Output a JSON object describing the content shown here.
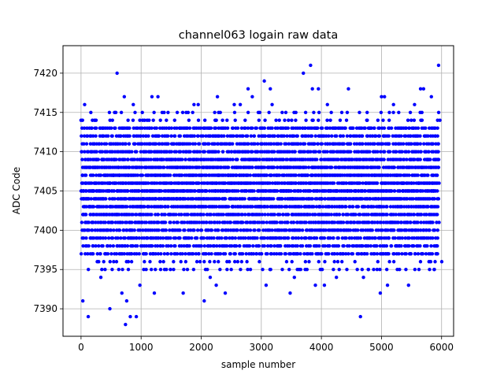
{
  "chart_data": {
    "type": "scatter",
    "title": "channel063 logain raw data",
    "xlabel": "sample number",
    "ylabel": "ADC Code",
    "xlim": [
      -300,
      6200
    ],
    "ylim": [
      7386.5,
      7423.5
    ],
    "x_ticks": [
      0,
      1000,
      2000,
      3000,
      4000,
      5000,
      6000
    ],
    "y_ticks": [
      7390,
      7395,
      7400,
      7405,
      7410,
      7415,
      7420
    ],
    "grid": true,
    "marker_color": "#0000ff",
    "sample_count": 6000,
    "series": [
      {
        "name": "",
        "dense_band": {
          "x_start": 0,
          "x_end": 5950,
          "y_min": 7397,
          "y_max": 7413
        },
        "outliers": [
          [
            0,
            7414
          ],
          [
            30,
            7391
          ],
          [
            60,
            7416
          ],
          [
            120,
            7389
          ],
          [
            180,
            7413
          ],
          [
            250,
            7414
          ],
          [
            330,
            7394
          ],
          [
            400,
            7395
          ],
          [
            480,
            7390
          ],
          [
            560,
            7413
          ],
          [
            600,
            7420
          ],
          [
            680,
            7392
          ],
          [
            720,
            7417
          ],
          [
            740,
            7388
          ],
          [
            760,
            7391
          ],
          [
            820,
            7389
          ],
          [
            870,
            7416
          ],
          [
            920,
            7389
          ],
          [
            980,
            7393
          ],
          [
            1020,
            7415
          ],
          [
            1100,
            7414
          ],
          [
            1180,
            7417
          ],
          [
            1220,
            7392
          ],
          [
            1280,
            7417
          ],
          [
            1350,
            7415
          ],
          [
            1420,
            7395
          ],
          [
            1700,
            7392
          ],
          [
            1750,
            7415
          ],
          [
            1880,
            7416
          ],
          [
            1950,
            7416
          ],
          [
            2050,
            7391
          ],
          [
            2150,
            7394
          ],
          [
            2250,
            7393
          ],
          [
            2270,
            7417
          ],
          [
            2400,
            7392
          ],
          [
            2550,
            7416
          ],
          [
            2650,
            7416
          ],
          [
            2780,
            7418
          ],
          [
            2850,
            7417
          ],
          [
            2950,
            7415
          ],
          [
            3050,
            7419
          ],
          [
            3080,
            7393
          ],
          [
            3150,
            7418
          ],
          [
            3180,
            7416
          ],
          [
            3350,
            7395
          ],
          [
            3480,
            7392
          ],
          [
            3550,
            7394
          ],
          [
            3600,
            7395
          ],
          [
            3700,
            7420
          ],
          [
            3760,
            7395
          ],
          [
            3820,
            7421
          ],
          [
            3850,
            7418
          ],
          [
            3900,
            7393
          ],
          [
            3950,
            7418
          ],
          [
            4050,
            7393
          ],
          [
            4100,
            7416
          ],
          [
            4200,
            7395
          ],
          [
            4250,
            7394
          ],
          [
            4450,
            7418
          ],
          [
            4650,
            7389
          ],
          [
            4700,
            7394
          ],
          [
            4780,
            7395
          ],
          [
            4980,
            7392
          ],
          [
            5000,
            7417
          ],
          [
            5050,
            7417
          ],
          [
            5100,
            7393
          ],
          [
            5200,
            7416
          ],
          [
            5300,
            7395
          ],
          [
            5450,
            7393
          ],
          [
            5480,
            7415
          ],
          [
            5550,
            7416
          ],
          [
            5650,
            7418
          ],
          [
            5700,
            7418
          ],
          [
            5800,
            7395
          ],
          [
            5830,
            7417
          ],
          [
            5880,
            7395
          ],
          [
            5920,
            7397
          ],
          [
            5950,
            7421
          ]
        ]
      }
    ]
  }
}
